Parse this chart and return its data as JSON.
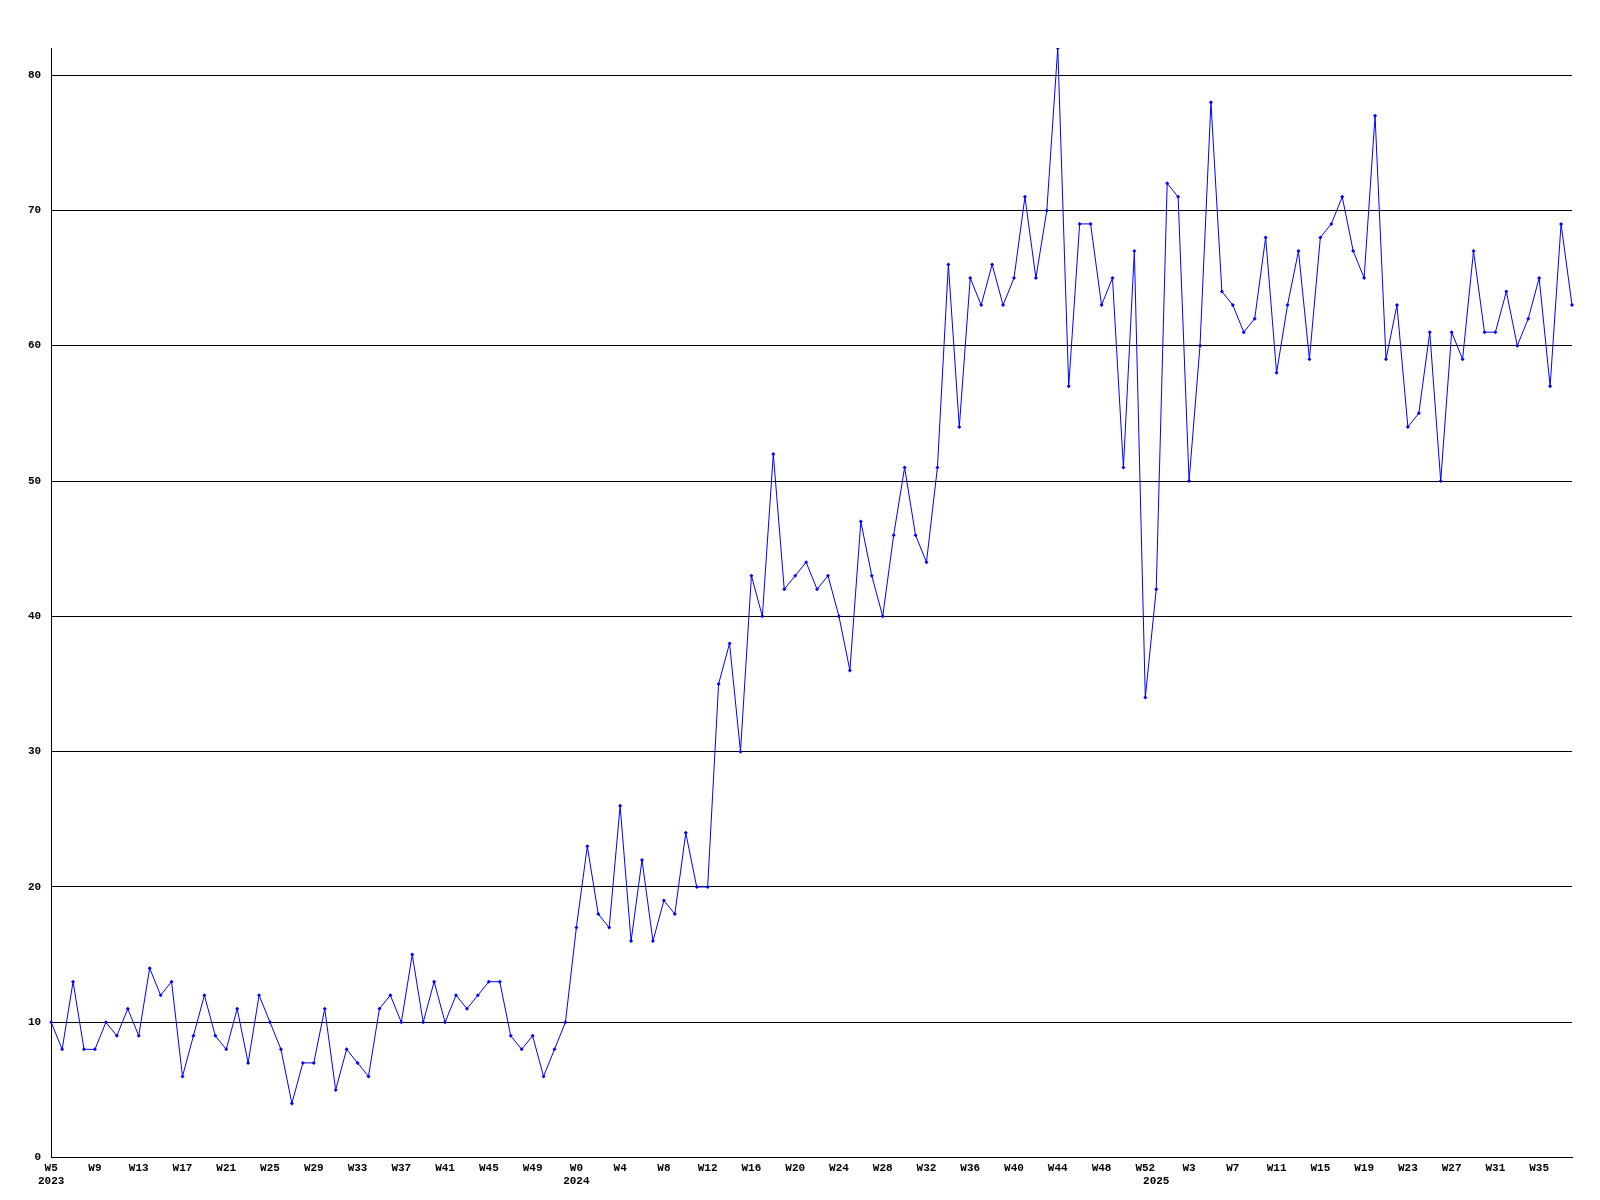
{
  "chart_data": {
    "type": "line",
    "categories": [
      "W5\n2023",
      null,
      null,
      null,
      "W9",
      null,
      null,
      null,
      "W13",
      null,
      null,
      null,
      "W17",
      null,
      null,
      null,
      "W21",
      null,
      null,
      null,
      "W25",
      null,
      null,
      null,
      "W29",
      null,
      null,
      null,
      "W33",
      null,
      null,
      null,
      "W37",
      null,
      null,
      null,
      "W41",
      null,
      null,
      null,
      "W45",
      null,
      null,
      null,
      "W49",
      null,
      null,
      null,
      "W0\n2024",
      null,
      null,
      null,
      "W4",
      null,
      null,
      null,
      "W8",
      null,
      null,
      null,
      "W12",
      null,
      null,
      null,
      "W16",
      null,
      null,
      null,
      "W20",
      null,
      null,
      null,
      "W24",
      null,
      null,
      null,
      "W28",
      null,
      null,
      null,
      "W32",
      null,
      null,
      null,
      "W36",
      null,
      null,
      null,
      "W40",
      null,
      null,
      null,
      "W44",
      null,
      null,
      null,
      "W48",
      null,
      null,
      null,
      "W52",
      "\n2025",
      null,
      null,
      "W3",
      null,
      null,
      null,
      "W7",
      null,
      null,
      null,
      "W11",
      null,
      null,
      null,
      "W15",
      null,
      null,
      null,
      "W19",
      null,
      null,
      null,
      "W23",
      null,
      null,
      null,
      "W27",
      null,
      null,
      null,
      "W31",
      null,
      null,
      null,
      "W35",
      null,
      null,
      null
    ],
    "series": [
      {
        "color": "#0000ff",
        "values": [
          10,
          8,
          13,
          8,
          8,
          10,
          9,
          11,
          9,
          14,
          12,
          13,
          6,
          9,
          12,
          9,
          8,
          11,
          7,
          12,
          10,
          8,
          4,
          7,
          7,
          11,
          5,
          8,
          7,
          6,
          11,
          12,
          10,
          15,
          10,
          13,
          10,
          12,
          11,
          12,
          13,
          13,
          9,
          8,
          9,
          6,
          8,
          10,
          17,
          23,
          18,
          17,
          26,
          16,
          22,
          16,
          19,
          18,
          24,
          20,
          20,
          35,
          38,
          30,
          43,
          40,
          52,
          42,
          43,
          44,
          42,
          43,
          40,
          36,
          47,
          43,
          40,
          46,
          51,
          46,
          44,
          51,
          66,
          54,
          65,
          63,
          66,
          63,
          65,
          71,
          65,
          70,
          82,
          57,
          69,
          69,
          63,
          65,
          51,
          67,
          34,
          42,
          72,
          71,
          50,
          60,
          78,
          64,
          63,
          61,
          62,
          68,
          58,
          63,
          67,
          59,
          68,
          69,
          71,
          67,
          65,
          77,
          59,
          63,
          54,
          55,
          61,
          50,
          61,
          59,
          67,
          61,
          61,
          64,
          60,
          62,
          65,
          57,
          69,
          63
        ]
      }
    ],
    "ylim": [
      0,
      82
    ],
    "yticks": [
      0,
      10,
      20,
      30,
      40,
      50,
      60,
      70,
      80
    ],
    "grid": "y",
    "marker": "diamond",
    "line_style": "solid",
    "legend": false
  }
}
